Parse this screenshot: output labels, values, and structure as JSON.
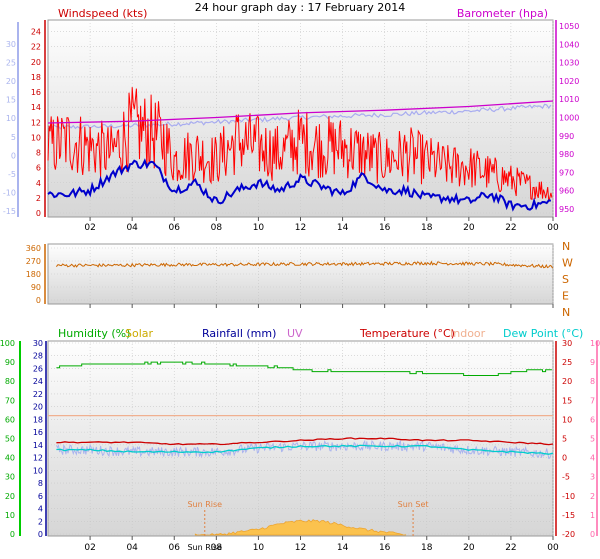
{
  "title": "24 hour graph day : 17 February 2014",
  "x_tick_labels": [
    "02",
    "04",
    "06",
    "08",
    "10",
    "12",
    "14",
    "16",
    "18",
    "20",
    "22",
    "00"
  ],
  "colors": {
    "windspeed": "#ff0000",
    "wind_avg": "#0000cc",
    "temp_axis": "#aab4ee",
    "barometer": "#cc00cc",
    "baro_avg_band": "#a8acf0",
    "direction": "#cc6600",
    "humidity": "#00aa00",
    "solar": "#ccaa00",
    "rainfall": "#000099",
    "uv": "#cc66cc",
    "temperature": "#cc0000",
    "indoor": "#f0b090",
    "dewpoint": "#00cccc",
    "sun_marker": "#e08040"
  },
  "panels": {
    "wind": {
      "left_label": "Windspeed (kts)",
      "right_label": "Barometer (hpa)",
      "left_ticks": [
        "24",
        "22",
        "20",
        "18",
        "16",
        "14",
        "12",
        "10",
        "8",
        "6",
        "4",
        "2",
        "0"
      ],
      "outer_left_ticks": [
        "30",
        "25",
        "20",
        "15",
        "10",
        "5",
        "0",
        "-5",
        "-10",
        "-15"
      ],
      "right_ticks": [
        "1050",
        "1040",
        "1030",
        "1020",
        "1010",
        "1000",
        "990",
        "980",
        "970",
        "960",
        "950"
      ]
    },
    "direction": {
      "left_ticks": [
        "360",
        "270",
        "180",
        "90",
        "0"
      ],
      "right_letters": [
        "N",
        "W",
        "S",
        "E",
        "N"
      ]
    },
    "multi": {
      "legend": {
        "humidity": "Humidity (%)",
        "solar": "Solar",
        "rainfall": "Rainfall (mm)",
        "uv": "UV",
        "temperature": "Temperature (°C)",
        "indoor": "Indoor",
        "dewpoint": "Dew Point (°C)"
      },
      "hum_ticks": [
        "100",
        "90",
        "80",
        "70",
        "60",
        "50",
        "40",
        "30",
        "20",
        "10",
        "0"
      ],
      "rain_ticks": [
        "30",
        "28",
        "26",
        "24",
        "22",
        "20",
        "18",
        "16",
        "14",
        "12",
        "10",
        "8",
        "6",
        "4",
        "2",
        "0"
      ],
      "temp_ticks": [
        "30",
        "25",
        "20",
        "15",
        "10",
        "5",
        "0",
        "-5",
        "-10",
        "-15",
        "-20"
      ],
      "uv_ticks": [
        "10",
        "9",
        "8",
        "7",
        "6",
        "5",
        "4",
        "3",
        "2",
        "1",
        "0"
      ],
      "sunrise_label": "Sun Rise",
      "sunset_label": "Sun Set",
      "sunrise_axis_label": "Sun Rise",
      "sunset_axis_label": ""
    }
  },
  "chart_data": [
    {
      "type": "line",
      "panel": "wind",
      "x_unit": "hour",
      "xlim": [
        0,
        24
      ],
      "ylim_left": [
        0,
        25
      ],
      "ylim_right": [
        950,
        1050
      ],
      "series": [
        {
          "name": "Windspeed (kts)",
          "x": [
            0,
            1,
            2,
            3,
            4,
            5,
            5.5,
            6,
            7,
            8,
            9,
            10,
            11,
            12,
            13,
            14,
            15,
            16,
            17,
            18,
            19,
            20,
            21,
            22,
            23,
            24
          ],
          "values": [
            10,
            11,
            10,
            9,
            13,
            12,
            11,
            8,
            9,
            8,
            11,
            10,
            9,
            11,
            10,
            10,
            9,
            8,
            9,
            8,
            7,
            7,
            6,
            5,
            4,
            3
          ]
        },
        {
          "name": "",
          "x": [
            0,
            1,
            2,
            3,
            4,
            5,
            6,
            7,
            8,
            9,
            10,
            11,
            12,
            13,
            14,
            15,
            16,
            17,
            18,
            19,
            20,
            21,
            22,
            23,
            24
          ],
          "values": [
            2.5,
            2.5,
            3,
            5,
            6.5,
            6.5,
            3,
            4,
            1.5,
            3,
            4,
            3,
            4.5,
            3.5,
            2.5,
            5,
            3,
            3,
            2,
            2,
            1.5,
            2.5,
            1,
            1,
            1.5
          ]
        },
        {
          "name": "Barometer (hpa)",
          "x": [
            0,
            4,
            8,
            12,
            16,
            20,
            24
          ],
          "values": [
            997,
            998,
            1000,
            1002.5,
            1004,
            1006,
            1009
          ]
        }
      ]
    },
    {
      "type": "line",
      "panel": "direction",
      "x_unit": "hour",
      "xlim": [
        0,
        24
      ],
      "ylim": [
        0,
        360
      ],
      "series": [
        {
          "name": "",
          "x": [
            0,
            3,
            6,
            9,
            12,
            15,
            18,
            21,
            24
          ],
          "values": [
            240,
            240,
            245,
            245,
            250,
            250,
            255,
            250,
            230
          ]
        }
      ]
    },
    {
      "type": "line",
      "panel": "multi",
      "x_unit": "hour",
      "xlim": [
        0,
        24
      ],
      "ylim_humidity": [
        0,
        100
      ],
      "ylim_temperature": [
        -20,
        30
      ],
      "series": [
        {
          "name": "Humidity (%)",
          "x": [
            0,
            2,
            4,
            6,
            8,
            10,
            12,
            14,
            16,
            18,
            19,
            20,
            21,
            22,
            24
          ],
          "values": [
            87,
            89,
            89,
            90,
            89,
            88,
            86,
            85,
            85,
            84,
            84,
            83,
            83,
            85,
            86
          ]
        },
        {
          "name": "Temperature (°C)",
          "x": [
            0,
            2,
            4,
            6,
            8,
            10,
            12,
            14,
            16,
            18,
            20,
            22,
            24
          ],
          "values": [
            4,
            4,
            4,
            3.5,
            3.5,
            4,
            4.5,
            5,
            5,
            4.5,
            4.5,
            4,
            3.5
          ]
        },
        {
          "name": "Dew Point (°C)",
          "x": [
            0,
            2,
            4,
            6,
            8,
            10,
            12,
            14,
            16,
            18,
            20,
            22,
            24
          ],
          "values": [
            2,
            2,
            1.5,
            1.5,
            1.5,
            2.5,
            3,
            3,
            3,
            3,
            2,
            1.5,
            1
          ]
        },
        {
          "name": "Indoor",
          "x": [
            0,
            12,
            24
          ],
          "values": [
            11,
            11,
            11
          ]
        },
        {
          "name": "Solar",
          "x": [
            7,
            8,
            9,
            10,
            11,
            12,
            13,
            14,
            15,
            16,
            17
          ],
          "values": [
            0,
            0,
            2,
            4,
            8,
            10,
            10,
            7,
            4,
            2,
            0
          ]
        }
      ]
    }
  ]
}
